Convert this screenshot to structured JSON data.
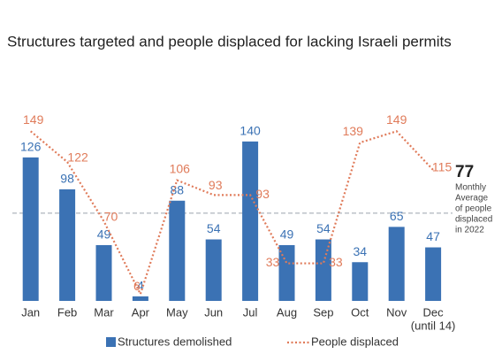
{
  "chart_data": {
    "type": "bar-line",
    "title": "Structures targeted and people displaced for lacking Israeli permits",
    "categories": [
      "Jan",
      "Feb",
      "Mar",
      "Apr",
      "May",
      "Jun",
      "Jul",
      "Aug",
      "Sep",
      "Oct",
      "Nov",
      "Dec"
    ],
    "last_category_note": "(until 14)",
    "series": [
      {
        "name": "Structures demolished",
        "color": "#3b72b4",
        "type": "bar",
        "values": [
          126,
          98,
          49,
          4,
          88,
          54,
          140,
          49,
          54,
          34,
          65,
          47
        ]
      },
      {
        "name": "People displaced",
        "color": "#e07b5a",
        "type": "line",
        "values": [
          149,
          122,
          70,
          6,
          106,
          93,
          93,
          33,
          33,
          139,
          149,
          115
        ]
      }
    ],
    "average": 77,
    "average_label": [
      "Monthly",
      "Average",
      "of people",
      "displaced",
      "in 2022"
    ],
    "ylim": [
      0,
      150
    ]
  }
}
